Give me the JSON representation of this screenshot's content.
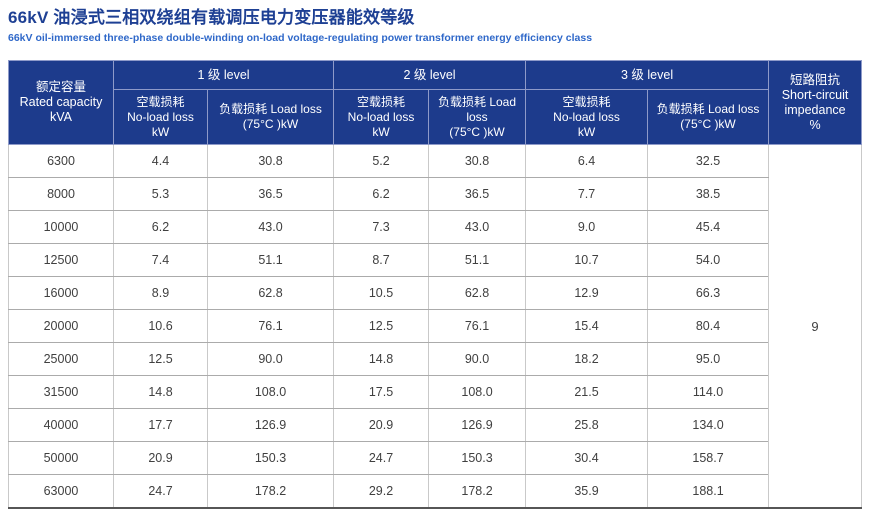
{
  "page": {
    "title_zh": "66kV 油浸式三相双绕组有载调压电力变压器能效等级",
    "title_en": "66kV oil-immersed three-phase double-winding on-load voltage-regulating power transformer energy efficiency class"
  },
  "colors": {
    "header_bg": "#1d3b8c",
    "header_border": "#8e9ac9",
    "title_blue": "#1e4094",
    "subtitle_blue": "#2f68c9",
    "body_text": "#404040",
    "grid_vertical": "#c9c9c9",
    "grid_horizontal": "#ababab",
    "table_bottom_border": "#565656"
  },
  "table": {
    "capacity_header": {
      "zh": "额定容量",
      "en": "Rated capacity",
      "unit": "kVA"
    },
    "levels": [
      {
        "label": "1 级 level"
      },
      {
        "label": "2 级 level"
      },
      {
        "label": "3 级 level"
      }
    ],
    "no_load_header": {
      "zh": "空载损耗",
      "en": "No-load loss",
      "unit": "kW"
    },
    "load_header": {
      "zh_en": "负载损耗 Load loss",
      "unit": "(75°C )kW"
    },
    "impedance_header": {
      "zh": "短路阻抗",
      "en": "Short-circuit impedance",
      "unit": "%"
    },
    "impedance_value": "9",
    "rows": [
      {
        "capacity": "6300",
        "values": [
          "4.4",
          "30.8",
          "5.2",
          "30.8",
          "6.4",
          "32.5"
        ]
      },
      {
        "capacity": "8000",
        "values": [
          "5.3",
          "36.5",
          "6.2",
          "36.5",
          "7.7",
          "38.5"
        ]
      },
      {
        "capacity": "10000",
        "values": [
          "6.2",
          "43.0",
          "7.3",
          "43.0",
          "9.0",
          "45.4"
        ]
      },
      {
        "capacity": "12500",
        "values": [
          "7.4",
          "51.1",
          "8.7",
          "51.1",
          "10.7",
          "54.0"
        ]
      },
      {
        "capacity": "16000",
        "values": [
          "8.9",
          "62.8",
          "10.5",
          "62.8",
          "12.9",
          "66.3"
        ]
      },
      {
        "capacity": "20000",
        "values": [
          "10.6",
          "76.1",
          "12.5",
          "76.1",
          "15.4",
          "80.4"
        ]
      },
      {
        "capacity": "25000",
        "values": [
          "12.5",
          "90.0",
          "14.8",
          "90.0",
          "18.2",
          "95.0"
        ]
      },
      {
        "capacity": "31500",
        "values": [
          "14.8",
          "108.0",
          "17.5",
          "108.0",
          "21.5",
          "114.0"
        ]
      },
      {
        "capacity": "40000",
        "values": [
          "17.7",
          "126.9",
          "20.9",
          "126.9",
          "25.8",
          "134.0"
        ]
      },
      {
        "capacity": "50000",
        "values": [
          "20.9",
          "150.3",
          "24.7",
          "150.3",
          "30.4",
          "158.7"
        ]
      },
      {
        "capacity": "63000",
        "values": [
          "24.7",
          "178.2",
          "29.2",
          "178.2",
          "35.9",
          "188.1"
        ]
      }
    ]
  }
}
